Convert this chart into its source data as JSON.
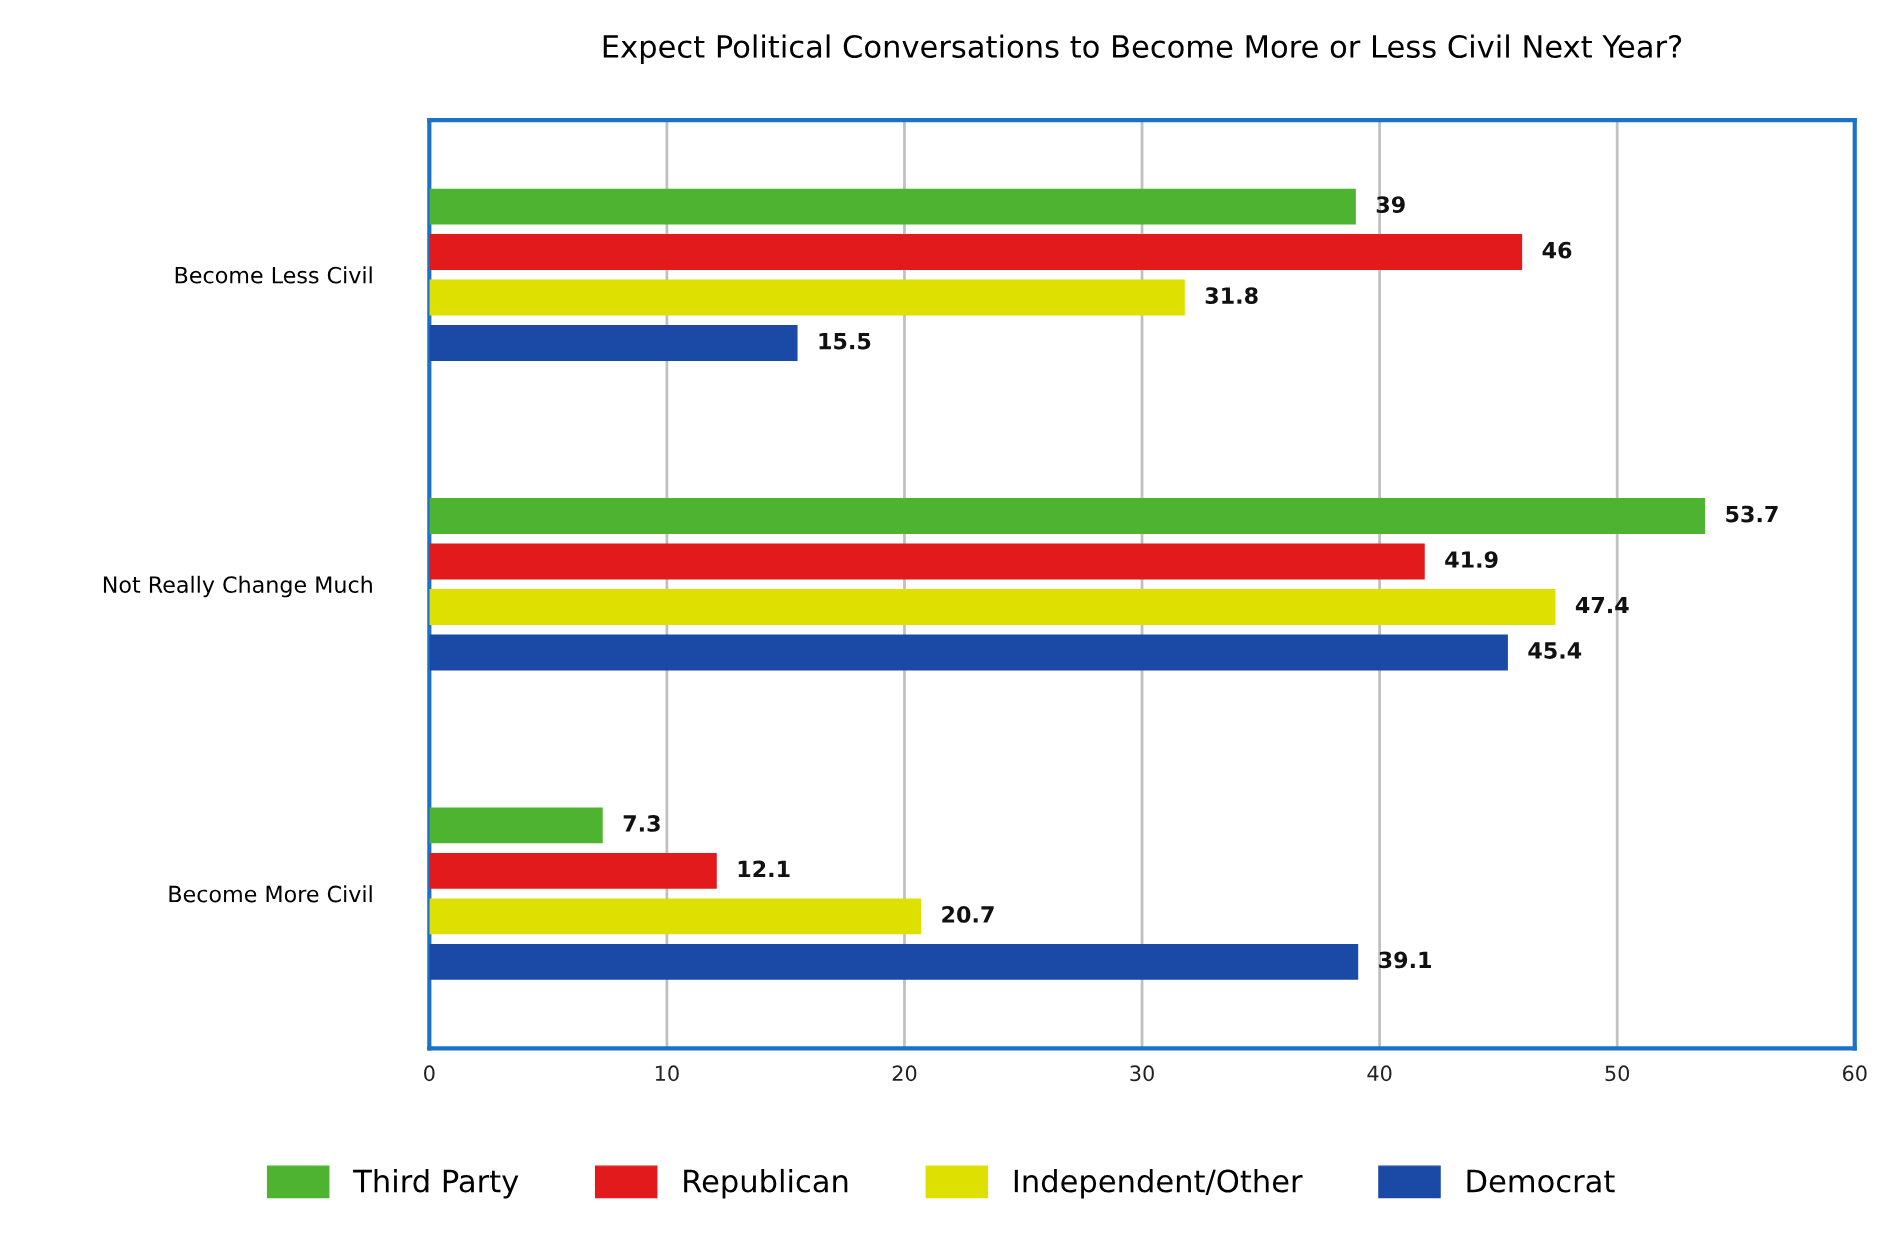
{
  "chart_data": {
    "type": "bar",
    "orientation": "horizontal",
    "title": "Expect Political Conversations to Become More or Less Civil Next Year?",
    "categories": [
      "Become Less Civil",
      "Not Really Change Much",
      "Become More Civil"
    ],
    "series": [
      {
        "name": "Third Party",
        "color": "#4db331",
        "values": [
          39,
          53.7,
          7.3
        ]
      },
      {
        "name": "Republican",
        "color": "#e31a1c",
        "values": [
          46,
          41.9,
          12.1
        ]
      },
      {
        "name": "Independent/Other",
        "color": "#dde000",
        "values": [
          31.8,
          47.4,
          20.7
        ]
      },
      {
        "name": "Democrat",
        "color": "#1a4aa5",
        "values": [
          15.5,
          45.4,
          39.1
        ]
      }
    ],
    "xlim": [
      0,
      60
    ],
    "xticks": [
      0,
      10,
      20,
      30,
      40,
      50,
      60
    ],
    "grid": "x",
    "legend": "bottom",
    "data_labels": true
  }
}
